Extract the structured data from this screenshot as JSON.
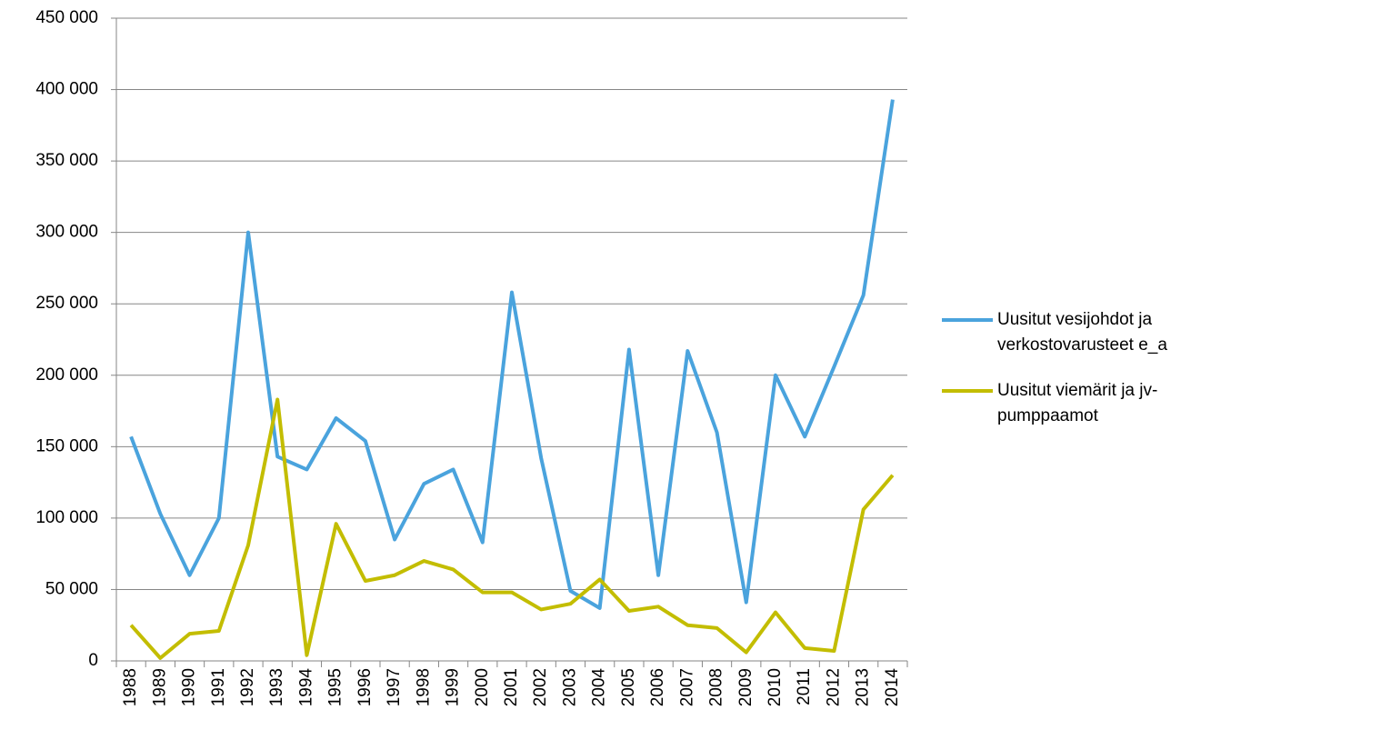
{
  "chart_data": {
    "type": "line",
    "categories": [
      "1988",
      "1989",
      "1990",
      "1991",
      "1992",
      "1993",
      "1994",
      "1995",
      "1996",
      "1997",
      "1998",
      "1999",
      "2000",
      "2001",
      "2002",
      "2003",
      "2004",
      "2005",
      "2006",
      "2007",
      "2008",
      "2009",
      "2010",
      "2011",
      "2012",
      "2013",
      "2014"
    ],
    "series": [
      {
        "name": "Uusitut vesijohdot ja verkostovarusteet e_a",
        "color": "#4aa3dd",
        "values": [
          157000,
          103000,
          60000,
          100000,
          300000,
          143000,
          134000,
          170000,
          154000,
          85000,
          124000,
          134000,
          83000,
          258000,
          142000,
          49000,
          37000,
          218000,
          60000,
          217000,
          160000,
          41000,
          200000,
          157000,
          206000,
          256000,
          393000
        ]
      },
      {
        "name": "Uusitut viemärit ja jv-pumppaamot",
        "color": "#c3bd00",
        "values": [
          25000,
          2000,
          19000,
          21000,
          81000,
          183000,
          4000,
          96000,
          56000,
          60000,
          70000,
          64000,
          48000,
          48000,
          36000,
          40000,
          57000,
          35000,
          38000,
          25000,
          23000,
          6000,
          34000,
          9000,
          7000,
          106000,
          130000
        ]
      }
    ],
    "ylim": [
      0,
      450000
    ],
    "yticks": [
      {
        "value": 0,
        "label": "0"
      },
      {
        "value": 50000,
        "label": "50 000"
      },
      {
        "value": 100000,
        "label": "100 000"
      },
      {
        "value": 150000,
        "label": "150 000"
      },
      {
        "value": 200000,
        "label": "200 000"
      },
      {
        "value": 250000,
        "label": "250 000"
      },
      {
        "value": 300000,
        "label": "300 000"
      },
      {
        "value": 350000,
        "label": "350 000"
      },
      {
        "value": 400000,
        "label": "400 000"
      },
      {
        "value": 450000,
        "label": "450 000"
      }
    ],
    "grid": true,
    "legend": "right"
  }
}
